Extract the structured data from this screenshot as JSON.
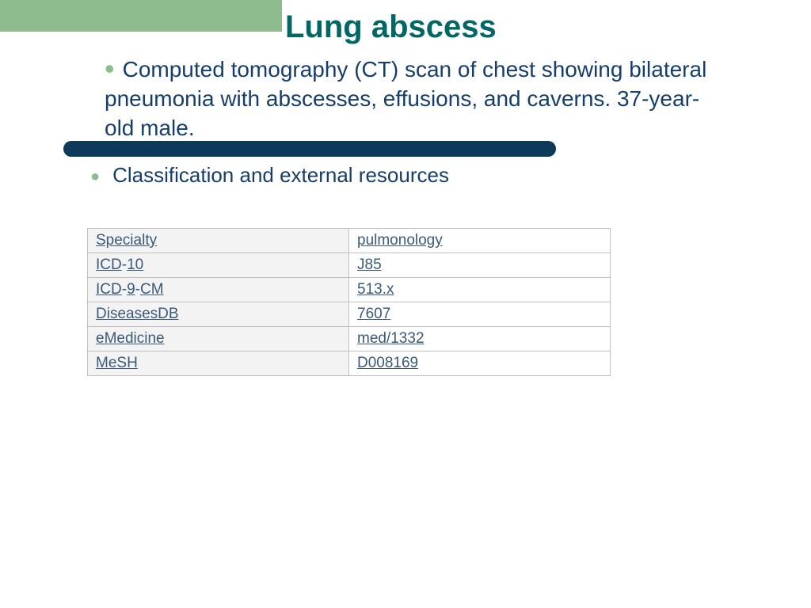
{
  "colors": {
    "green": "#8fbc8f",
    "navy": "#0e3a5a",
    "teal": "#006666",
    "link": "#3a5a7a",
    "text_blue": "#153e6d",
    "table_border": "#c0c0c0",
    "key_bg": "#f3f3f3",
    "val_bg": "#ffffff"
  },
  "title": "Lung abscess",
  "bullet1": "Computed tomography (CT) scan of chest showing bilateral pneumonia with abscesses, effusions, and caverns. 37-year-old male.",
  "bullet2": "Classification and external resources",
  "table": {
    "rows": [
      {
        "key_parts": [
          {
            "text": "Specialty",
            "underline": true
          }
        ],
        "val_parts": [
          {
            "text": "pulmonology",
            "underline": true
          }
        ]
      },
      {
        "key_parts": [
          {
            "text": "ICD",
            "underline": true
          },
          {
            "text": "-",
            "underline": false
          },
          {
            "text": "10",
            "underline": true
          }
        ],
        "val_parts": [
          {
            "text": "J85",
            "underline": true
          }
        ]
      },
      {
        "key_parts": [
          {
            "text": "ICD",
            "underline": true
          },
          {
            "text": "-",
            "underline": false
          },
          {
            "text": "9",
            "underline": true
          },
          {
            "text": "-",
            "underline": false
          },
          {
            "text": "CM",
            "underline": true
          }
        ],
        "val_parts": [
          {
            "text": "513.x",
            "underline": true
          }
        ]
      },
      {
        "key_parts": [
          {
            "text": "DiseasesDB",
            "underline": true
          }
        ],
        "val_parts": [
          {
            "text": "7607",
            "underline": true
          }
        ]
      },
      {
        "key_parts": [
          {
            "text": "eMedicine",
            "underline": true
          }
        ],
        "val_parts": [
          {
            "text": "med/1332",
            "underline": true
          }
        ]
      },
      {
        "key_parts": [
          {
            "text": "MeSH",
            "underline": true
          }
        ],
        "val_parts": [
          {
            "text": "D008169",
            "underline": true
          }
        ]
      }
    ]
  },
  "fonts": {
    "title_size": 40,
    "bullet_size": 28,
    "subbullet_size": 26,
    "table_size": 19
  }
}
